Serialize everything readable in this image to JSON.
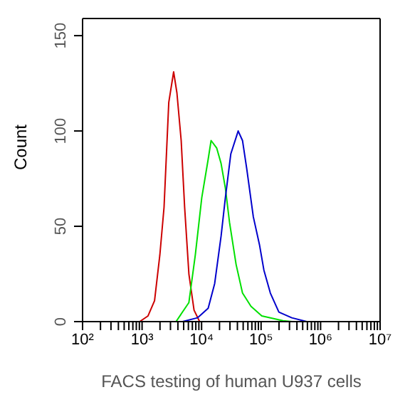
{
  "chart_data": {
    "type": "line",
    "xlabel": "FACS testing of human U937 cells",
    "ylabel": "Count",
    "log": "x",
    "legend": false,
    "marker": "none",
    "line_style": "solid",
    "xlim": [
      100,
      10000000
    ],
    "ylim": [
      0,
      159
    ],
    "yticks": [
      0,
      50,
      100,
      150
    ],
    "xticks": [
      {
        "value": 100,
        "label": "10²"
      },
      {
        "value": 200,
        "label": null
      },
      {
        "value": 300,
        "label": null
      },
      {
        "value": 400,
        "label": null
      },
      {
        "value": 500,
        "label": null
      },
      {
        "value": 600,
        "label": null
      },
      {
        "value": 700,
        "label": null
      },
      {
        "value": 800,
        "label": null
      },
      {
        "value": 900,
        "label": null
      },
      {
        "value": 1000,
        "label": "10³"
      },
      {
        "value": 2000,
        "label": null
      },
      {
        "value": 3000,
        "label": null
      },
      {
        "value": 4000,
        "label": null
      },
      {
        "value": 5000,
        "label": null
      },
      {
        "value": 6000,
        "label": null
      },
      {
        "value": 7000,
        "label": null
      },
      {
        "value": 8000,
        "label": null
      },
      {
        "value": 9000,
        "label": null
      },
      {
        "value": 10000,
        "label": "10⁴"
      },
      {
        "value": 20000,
        "label": null
      },
      {
        "value": 30000,
        "label": null
      },
      {
        "value": 40000,
        "label": null
      },
      {
        "value": 50000,
        "label": null
      },
      {
        "value": 60000,
        "label": null
      },
      {
        "value": 70000,
        "label": null
      },
      {
        "value": 80000,
        "label": null
      },
      {
        "value": 90000,
        "label": null
      },
      {
        "value": 100000,
        "label": "10⁵"
      },
      {
        "value": 200000,
        "label": null
      },
      {
        "value": 300000,
        "label": null
      },
      {
        "value": 400000,
        "label": null
      },
      {
        "value": 500000,
        "label": null
      },
      {
        "value": 600000,
        "label": null
      },
      {
        "value": 700000,
        "label": null
      },
      {
        "value": 800000,
        "label": null
      },
      {
        "value": 900000,
        "label": null
      },
      {
        "value": 1000000,
        "label": "10⁶"
      },
      {
        "value": 2000000,
        "label": null
      },
      {
        "value": 3000000,
        "label": null
      },
      {
        "value": 4000000,
        "label": null
      },
      {
        "value": 5000000,
        "label": null
      },
      {
        "value": 6000000,
        "label": null
      },
      {
        "value": 7000000,
        "label": null
      },
      {
        "value": 8000000,
        "label": null
      },
      {
        "value": 9000000,
        "label": null
      },
      {
        "value": 10000000,
        "label": "10⁷"
      }
    ],
    "series": [
      {
        "color": "#cc0000",
        "x": [
          910,
          1260,
          1620,
          1990,
          2340,
          2810,
          3390,
          3850,
          4540,
          5190,
          6120,
          7470,
          9270
        ],
        "values": [
          0,
          3,
          11,
          35,
          60,
          115,
          131,
          120,
          95,
          60,
          25,
          6,
          0
        ]
      },
      {
        "color": "#00e000",
        "x": [
          3720,
          6120,
          7850,
          10070,
          12880,
          14450,
          17970,
          21250,
          25100,
          29500,
          38000,
          48700,
          67600,
          102700,
          234000,
          331000
        ],
        "values": [
          0,
          10,
          35,
          65,
          85,
          95,
          91,
          83,
          70,
          52,
          30,
          15,
          8,
          3,
          0.5,
          0
        ]
      },
      {
        "color": "#0000cc",
        "x": [
          4780,
          8530,
          12900,
          16600,
          21300,
          25100,
          31000,
          41200,
          48700,
          57500,
          74000,
          94400,
          111500,
          143000,
          199000,
          328000,
          586000
        ],
        "values": [
          0,
          2,
          7,
          20,
          45,
          65,
          88,
          100,
          95,
          80,
          55,
          40,
          27,
          15,
          5,
          2,
          0
        ]
      }
    ]
  }
}
